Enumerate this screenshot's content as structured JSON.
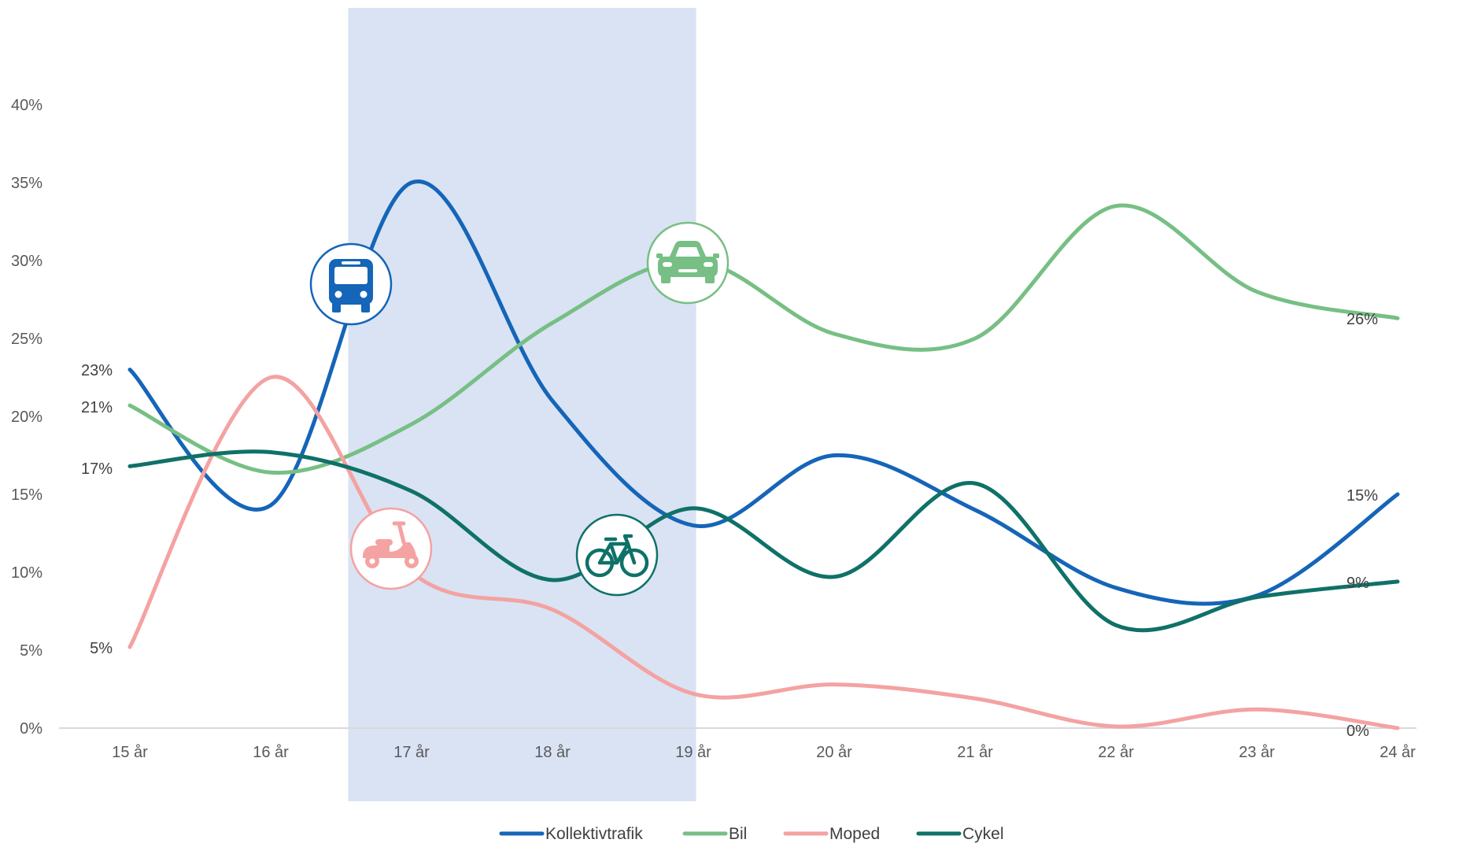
{
  "chart_data": {
    "type": "line",
    "title": "",
    "xlabel": "",
    "ylabel": "",
    "categories": [
      "15 år",
      "16 år",
      "17 år",
      "18 år",
      "19 år",
      "20 år",
      "21 år",
      "22 år",
      "23 år",
      "24 år"
    ],
    "ylim": [
      0,
      40
    ],
    "yticks": [
      "0%",
      "5%",
      "10%",
      "15%",
      "20%",
      "25%",
      "30%",
      "35%",
      "40%"
    ],
    "highlight_range": [
      "16 år",
      "19 år"
    ],
    "grid": false,
    "legend_position": "bottom",
    "series": [
      {
        "name": "Kollektivtrafik",
        "color": "#1565b8",
        "icon": "bus-icon",
        "values": [
          23,
          14.3,
          35,
          21,
          13,
          17.5,
          14,
          9,
          8.5,
          15
        ],
        "start_label": "23%",
        "end_label": "15%"
      },
      {
        "name": "Bil",
        "color": "#77bf84",
        "icon": "car-icon",
        "values": [
          20.7,
          16.4,
          19.5,
          26,
          30,
          25.3,
          25,
          33.5,
          28,
          26.3
        ],
        "start_label": "21%",
        "end_label": "26%"
      },
      {
        "name": "Moped",
        "color": "#f4a2a2",
        "icon": "scooter-icon",
        "values": [
          5.2,
          22.5,
          10,
          7.6,
          2.2,
          2.8,
          1.9,
          0.1,
          1.2,
          0
        ],
        "start_label": "5%",
        "end_label": "0%"
      },
      {
        "name": "Cykel",
        "color": "#0f7168",
        "icon": "bicycle-icon",
        "values": [
          16.8,
          17.7,
          15.2,
          9.5,
          14.1,
          9.7,
          15.7,
          6.6,
          8.4,
          9.4
        ],
        "start_label": "17%",
        "end_label": "9%"
      }
    ]
  }
}
